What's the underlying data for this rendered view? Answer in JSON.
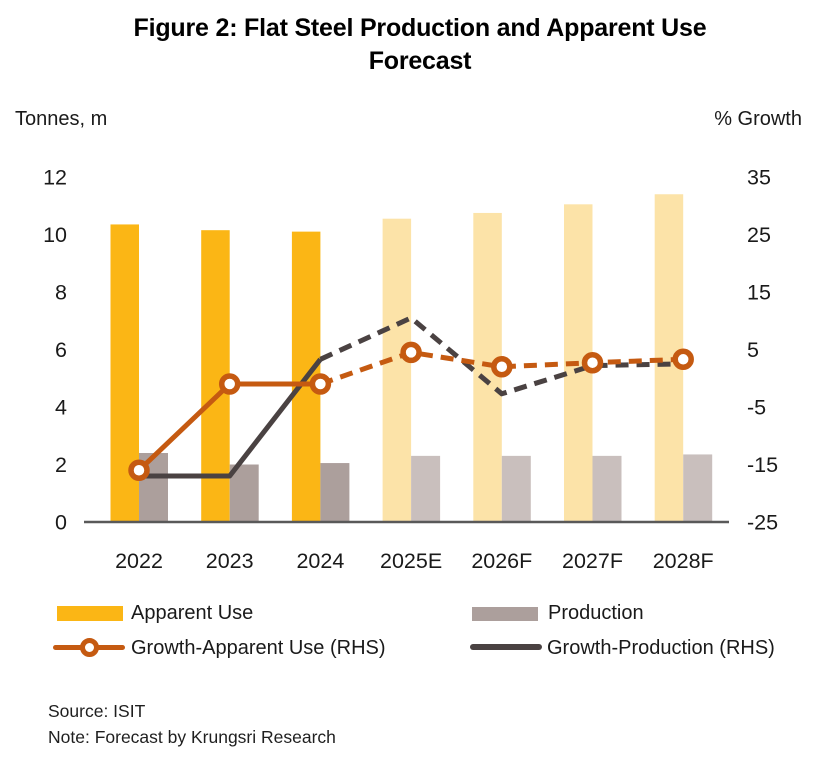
{
  "title": {
    "line1": "Figure 2: Flat Steel Production and Apparent Use",
    "line2": "Forecast"
  },
  "left_axis_unit": "Tonnes, m",
  "right_axis_unit": "% Growth",
  "legend": {
    "items": [
      {
        "label": "Apparent Use",
        "type": "bar-swatch",
        "color": "#FBB615"
      },
      {
        "label": "Production",
        "type": "bar-swatch",
        "color": "#AC9F9C"
      },
      {
        "label": "Growth-Apparent Use (RHS)",
        "type": "line-marker-swatch",
        "color": "#C55A11"
      },
      {
        "label": "Growth-Production (RHS)",
        "type": "line-swatch",
        "color": "#4A4242"
      }
    ]
  },
  "footer": {
    "source": "Source: ISIT",
    "note": "Note: Forecast by Krungsri Research"
  },
  "chart_data": {
    "type": "bar",
    "subtype": "grouped bars + two growth lines (solid = actual, dashed = forecast)",
    "categories": [
      "2022",
      "2023",
      "2024",
      "2025E",
      "2026F",
      "2027F",
      "2028F"
    ],
    "actual_count": 3,
    "left_axis": {
      "label": "Tonnes, m",
      "ticks": [
        0,
        2,
        4,
        6,
        8,
        10,
        12
      ],
      "ylim": [
        0,
        12
      ]
    },
    "right_axis": {
      "label": "% Growth",
      "ticks": [
        35,
        25,
        15,
        5,
        -5,
        -15,
        -25
      ],
      "ylim": [
        -25,
        35
      ]
    },
    "grid": false,
    "legend_position": "bottom",
    "series": [
      {
        "name": "Apparent Use",
        "slug": "apparent-use",
        "type": "bar",
        "axis": "left",
        "values": [
          10.35,
          10.15,
          10.1,
          10.55,
          10.75,
          11.05,
          11.4
        ],
        "color_actual": "#FBB615",
        "color_forecast": "#FCE3A8"
      },
      {
        "name": "Production",
        "slug": "production",
        "type": "bar",
        "axis": "left",
        "values": [
          2.4,
          2.0,
          2.05,
          2.3,
          2.3,
          2.3,
          2.35
        ],
        "color_actual": "#AC9F9C",
        "color_forecast": "#C9BFBD"
      },
      {
        "name": "Growth-Production (RHS)",
        "slug": "growth-production",
        "type": "line",
        "axis": "right",
        "values": [
          -17,
          -17,
          3.3,
          10.5,
          -2.7,
          2.2,
          2.5
        ],
        "color": "#4A4242",
        "marker": false
      },
      {
        "name": "Growth-Apparent Use (RHS)",
        "slug": "growth-apparent-use",
        "type": "line",
        "axis": "right",
        "values": [
          -16,
          -1,
          -1,
          4.5,
          2,
          2.7,
          3.3
        ],
        "color": "#C55A11",
        "marker": true
      }
    ]
  }
}
